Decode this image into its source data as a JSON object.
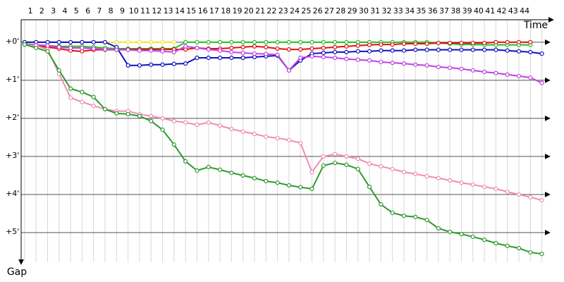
{
  "chart_data": {
    "type": "line",
    "x_label": "Time",
    "y_label": "Gap",
    "x": [
      0,
      1,
      2,
      3,
      4,
      5,
      6,
      7,
      8,
      9,
      10,
      11,
      12,
      13,
      14,
      15,
      16,
      17,
      18,
      19,
      20,
      21,
      22,
      23,
      24,
      25,
      26,
      27,
      28,
      29,
      30,
      31,
      32,
      33,
      34,
      35,
      36,
      37,
      38,
      39,
      40,
      41,
      42,
      43,
      44,
      45
    ],
    "xlim": [
      -0.3,
      45.7
    ],
    "xticks": [
      {
        "value": 0.5,
        "label": "1"
      },
      {
        "value": 1.5,
        "label": "2"
      },
      {
        "value": 2.5,
        "label": "3"
      },
      {
        "value": 3.5,
        "label": "4"
      },
      {
        "value": 4.5,
        "label": "5"
      },
      {
        "value": 5.5,
        "label": "6"
      },
      {
        "value": 6.5,
        "label": "7"
      },
      {
        "value": 7.5,
        "label": "8"
      },
      {
        "value": 8.5,
        "label": "9"
      },
      {
        "value": 9.5,
        "label": "10"
      },
      {
        "value": 10.5,
        "label": "11"
      },
      {
        "value": 11.5,
        "label": "12"
      },
      {
        "value": 12.5,
        "label": "13"
      },
      {
        "value": 13.5,
        "label": "14"
      },
      {
        "value": 14.5,
        "label": "15"
      },
      {
        "value": 15.5,
        "label": "16"
      },
      {
        "value": 16.5,
        "label": "17"
      },
      {
        "value": 17.5,
        "label": "18"
      },
      {
        "value": 18.5,
        "label": "19"
      },
      {
        "value": 19.5,
        "label": "20"
      },
      {
        "value": 20.5,
        "label": "21"
      },
      {
        "value": 21.5,
        "label": "22"
      },
      {
        "value": 22.5,
        "label": "23"
      },
      {
        "value": 23.5,
        "label": "24"
      },
      {
        "value": 24.5,
        "label": "25"
      },
      {
        "value": 25.5,
        "label": "26"
      },
      {
        "value": 26.5,
        "label": "27"
      },
      {
        "value": 27.5,
        "label": "28"
      },
      {
        "value": 28.5,
        "label": "29"
      },
      {
        "value": 29.5,
        "label": "30"
      },
      {
        "value": 30.5,
        "label": "31"
      },
      {
        "value": 31.5,
        "label": "32"
      },
      {
        "value": 32.5,
        "label": "33"
      },
      {
        "value": 33.5,
        "label": "34"
      },
      {
        "value": 34.5,
        "label": "35"
      },
      {
        "value": 35.5,
        "label": "36"
      },
      {
        "value": 36.5,
        "label": "37"
      },
      {
        "value": 37.5,
        "label": "38"
      },
      {
        "value": 38.5,
        "label": "39"
      },
      {
        "value": 39.5,
        "label": "40"
      },
      {
        "value": 40.5,
        "label": "41"
      },
      {
        "value": 41.5,
        "label": "42"
      },
      {
        "value": 42.5,
        "label": "43"
      },
      {
        "value": 43.5,
        "label": "44"
      }
    ],
    "ylim": [
      -0.59,
      5.78
    ],
    "yticks": [
      {
        "value": 0,
        "label": "+0'"
      },
      {
        "value": 1,
        "label": "+1'"
      },
      {
        "value": 2,
        "label": "+2'"
      },
      {
        "value": 3,
        "label": "+3'"
      },
      {
        "value": 4,
        "label": "+4'"
      },
      {
        "value": 5,
        "label": "+5'"
      }
    ],
    "series": [
      {
        "color": "#2e9a2e",
        "values": [
          0.06,
          0.15,
          0.24,
          0.74,
          1.22,
          1.31,
          1.44,
          1.76,
          1.87,
          1.89,
          1.94,
          2.07,
          2.3,
          2.69,
          3.13,
          3.37,
          3.28,
          3.35,
          3.43,
          3.5,
          3.57,
          3.65,
          3.69,
          3.76,
          3.81,
          3.85,
          3.24,
          3.17,
          3.22,
          3.33,
          3.8,
          4.26,
          4.48,
          4.56,
          4.59,
          4.67,
          4.89,
          4.98,
          5.04,
          5.11,
          5.19,
          5.28,
          5.35,
          5.41,
          5.52,
          5.56
        ]
      },
      {
        "color": "#f08cb4",
        "values": [
          0.06,
          0.09,
          0.19,
          0.83,
          1.46,
          1.57,
          1.67,
          1.76,
          1.81,
          1.81,
          1.89,
          1.94,
          2.0,
          2.07,
          2.11,
          2.17,
          2.11,
          2.19,
          2.28,
          2.35,
          2.41,
          2.48,
          2.52,
          2.57,
          2.65,
          3.41,
          3.0,
          2.94,
          3.0,
          3.06,
          3.19,
          3.26,
          3.33,
          3.41,
          3.46,
          3.52,
          3.57,
          3.63,
          3.69,
          3.74,
          3.8,
          3.85,
          3.93,
          4.0,
          4.07,
          4.15
        ]
      },
      {
        "color": "#c040e0",
        "values": [
          0.06,
          0.07,
          0.09,
          0.13,
          0.15,
          0.15,
          0.17,
          0.19,
          0.2,
          0.2,
          0.22,
          0.22,
          0.24,
          0.26,
          0.11,
          0.15,
          0.19,
          0.22,
          0.26,
          0.28,
          0.3,
          0.31,
          0.33,
          0.74,
          0.41,
          0.37,
          0.39,
          0.41,
          0.44,
          0.46,
          0.48,
          0.52,
          0.54,
          0.56,
          0.59,
          0.61,
          0.65,
          0.67,
          0.7,
          0.74,
          0.78,
          0.81,
          0.85,
          0.89,
          0.93,
          1.07
        ]
      },
      {
        "color": "#1010c0",
        "values": [
          0,
          0,
          0,
          0,
          0,
          0,
          0,
          0,
          0.13,
          0.61,
          0.61,
          0.59,
          0.59,
          0.57,
          0.56,
          0.41,
          0.41,
          0.41,
          0.41,
          0.41,
          0.39,
          0.37,
          0.35,
          0.74,
          0.48,
          0.3,
          0.28,
          0.26,
          0.26,
          0.24,
          0.24,
          0.22,
          0.22,
          0.22,
          0.2,
          0.2,
          0.2,
          0.2,
          0.2,
          0.2,
          0.2,
          0.2,
          0.22,
          0.24,
          0.26,
          0.3
        ]
      },
      {
        "color": "#e01010",
        "values": [
          0.06,
          0.09,
          0.13,
          0.17,
          0.22,
          0.24,
          0.2,
          0.2,
          0.2,
          0.19,
          0.19,
          0.19,
          0.19,
          0.19,
          0.19,
          0.15,
          0.17,
          0.17,
          0.15,
          0.13,
          0.11,
          0.13,
          0.17,
          0.19,
          0.19,
          0.17,
          0.15,
          0.13,
          0.11,
          0.09,
          0.07,
          0.06,
          0.06,
          0.04,
          0.04,
          0.04,
          0.02,
          0.02,
          0.02,
          0.02,
          0.02,
          0,
          0,
          0,
          0,
          null
        ]
      },
      {
        "color": "#20c020",
        "values": [
          0.04,
          0.07,
          0.09,
          0.11,
          0.11,
          0.11,
          0.13,
          0.15,
          0.17,
          0.17,
          0.17,
          0.17,
          0.17,
          0.17,
          0,
          0,
          0,
          0,
          0,
          0,
          0,
          0,
          0,
          0,
          0,
          0,
          0,
          0,
          0,
          0,
          0,
          0,
          0,
          0,
          0,
          0,
          0.02,
          0.04,
          0.06,
          0.06,
          0.07,
          0.07,
          0.07,
          0.07,
          0.07,
          null
        ]
      },
      {
        "color": "#e8e840",
        "values": [
          0,
          0,
          0,
          0,
          0,
          0,
          0,
          0,
          0,
          0,
          0,
          0,
          0,
          0,
          null,
          null,
          null,
          null,
          null,
          null,
          null,
          null,
          null,
          null,
          null,
          null,
          null,
          null,
          null,
          null,
          null,
          null,
          null,
          null,
          null,
          null,
          null,
          null,
          null,
          null,
          null,
          null,
          null,
          null,
          null,
          null
        ]
      }
    ]
  }
}
